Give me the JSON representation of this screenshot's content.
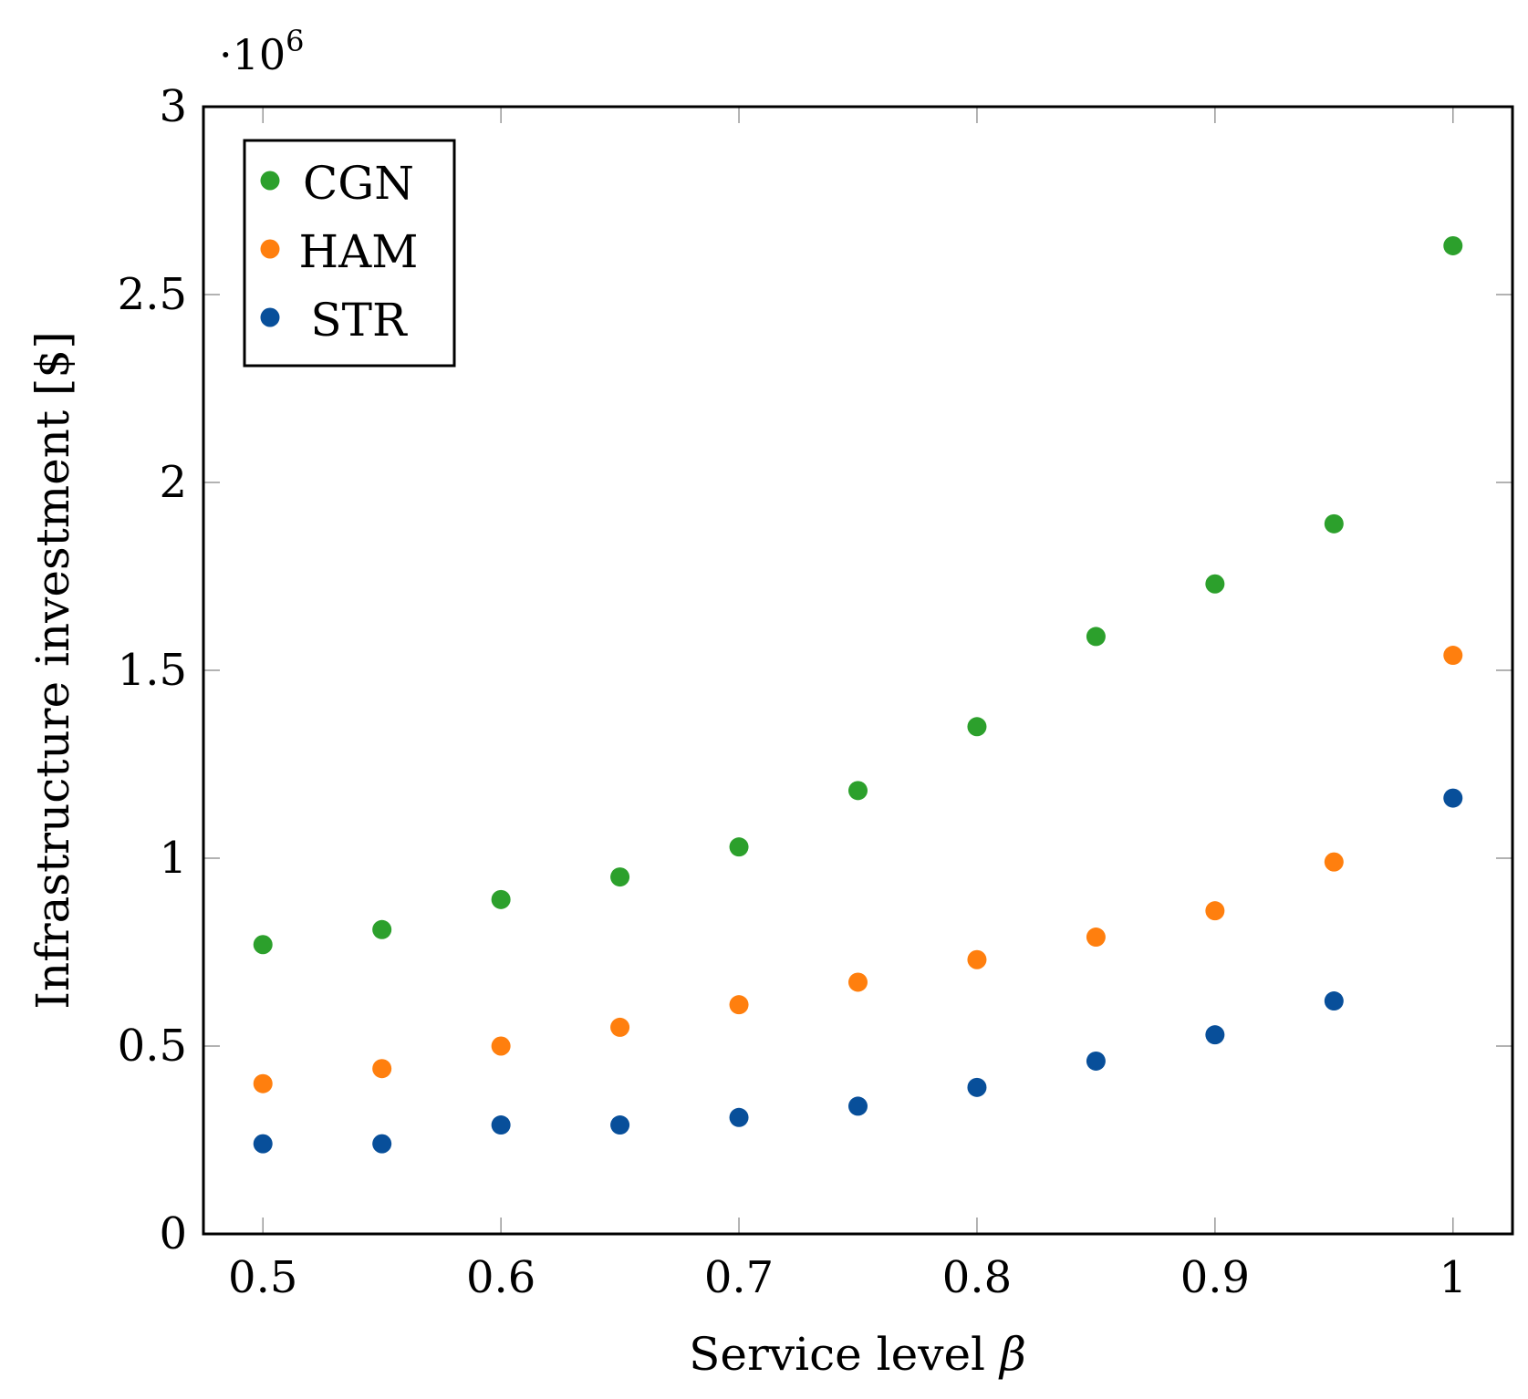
{
  "chart_data": {
    "type": "scatter",
    "title": "",
    "xlabel": "Service level",
    "xlabel_symbol": "β",
    "ylabel": "Infrastructure investment [$]",
    "y_multiplier": {
      "prefix": "·10",
      "exponent": "6"
    },
    "xlim": [
      0.475,
      1.025
    ],
    "ylim": [
      0,
      3
    ],
    "x_ticks": [
      0.5,
      0.6,
      0.7,
      0.8,
      0.9,
      1.0
    ],
    "x_tick_labels": [
      "0.5",
      "0.6",
      "0.7",
      "0.8",
      "0.9",
      "1"
    ],
    "y_ticks": [
      0,
      0.5,
      1,
      1.5,
      2,
      2.5,
      3
    ],
    "y_tick_labels": [
      "0",
      "0.5",
      "1",
      "1.5",
      "2",
      "2.5",
      "3"
    ],
    "legend_position": "top-left",
    "x": [
      0.5,
      0.55,
      0.6,
      0.65,
      0.7,
      0.75,
      0.8,
      0.85,
      0.9,
      0.95,
      1.0
    ],
    "series": [
      {
        "name": "CGN",
        "color": "#2ca02c",
        "values": [
          0.77,
          0.81,
          0.89,
          0.95,
          1.03,
          1.18,
          1.35,
          1.59,
          1.73,
          1.89,
          2.63
        ]
      },
      {
        "name": "HAM",
        "color": "#ff7f0e",
        "values": [
          0.4,
          0.44,
          0.5,
          0.55,
          0.61,
          0.67,
          0.73,
          0.79,
          0.86,
          0.99,
          1.54
        ]
      },
      {
        "name": "STR",
        "color": "#084f9a",
        "values": [
          0.24,
          0.24,
          0.29,
          0.29,
          0.31,
          0.34,
          0.39,
          0.46,
          0.53,
          0.62,
          1.16
        ]
      }
    ]
  }
}
